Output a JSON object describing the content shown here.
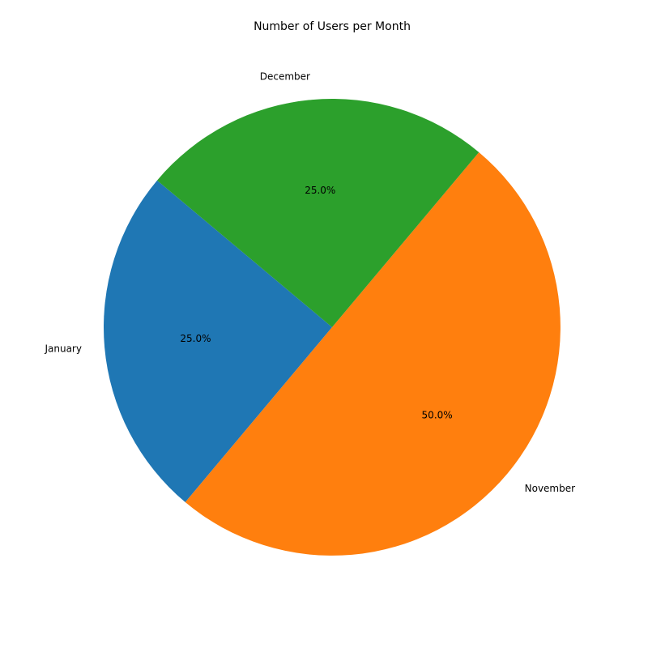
{
  "chart_data": {
    "type": "pie",
    "title": "Number of Users per Month",
    "categories": [
      "January",
      "November",
      "December"
    ],
    "values": [
      25,
      50,
      25
    ],
    "percent_labels": [
      "25.0%",
      "50.0%",
      "25.0%"
    ],
    "colors": [
      "#1f77b4",
      "#ff7f0e",
      "#2ca02c"
    ],
    "start_angle_deg": 140,
    "direction": "counterclockwise"
  }
}
